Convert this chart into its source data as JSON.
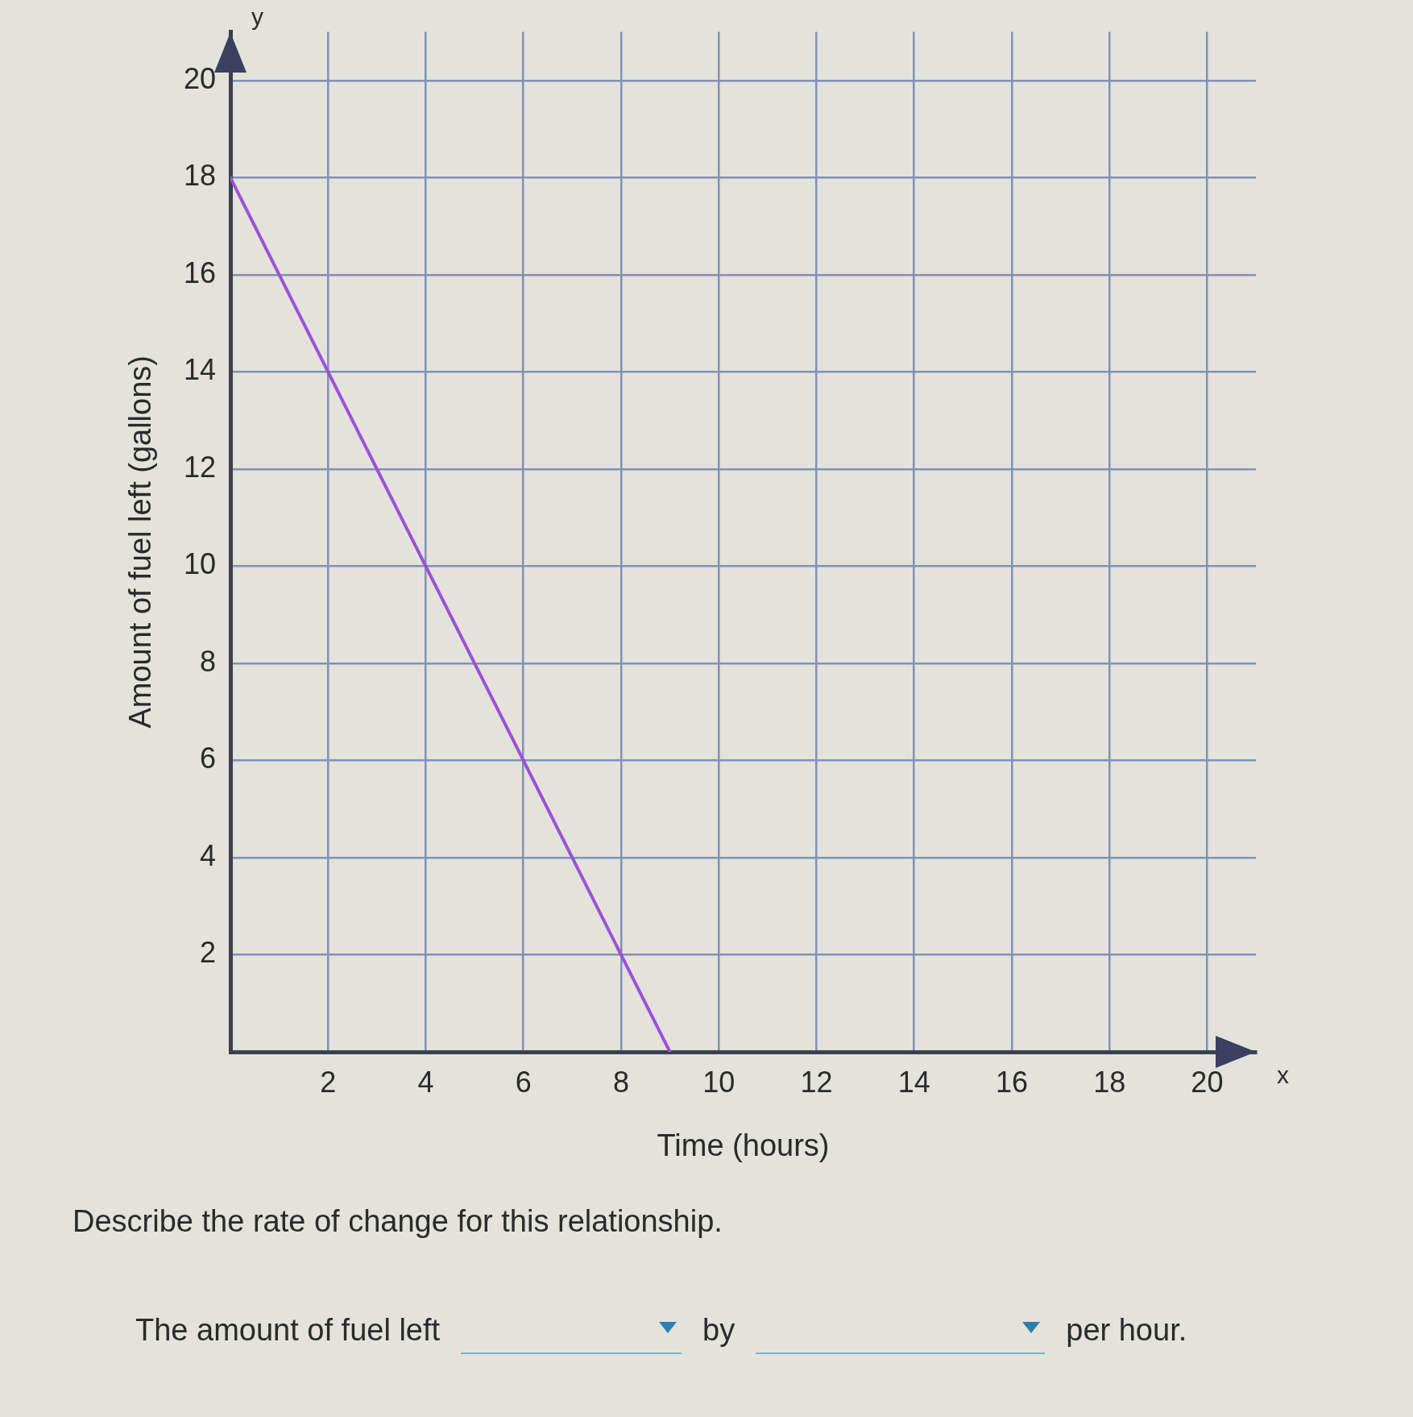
{
  "chart_data": {
    "type": "line",
    "xlabel": "Time (hours)",
    "ylabel": "Amount of fuel left (gallons)",
    "x": [
      0,
      9
    ],
    "values": [
      18,
      0
    ],
    "color": "#9a52d6",
    "xlim": [
      0,
      21
    ],
    "ylim": [
      0,
      21
    ],
    "xticks": [
      2,
      4,
      6,
      8,
      10,
      12,
      14,
      16,
      18,
      20
    ],
    "yticks": [
      2,
      4,
      6,
      8,
      10,
      12,
      14,
      16,
      18,
      20
    ],
    "grid": true,
    "annotations": [
      "x",
      "y",
      "Describe the rate of change for this relationship.",
      "The amount of fuel left",
      "by",
      "per hour."
    ]
  }
}
